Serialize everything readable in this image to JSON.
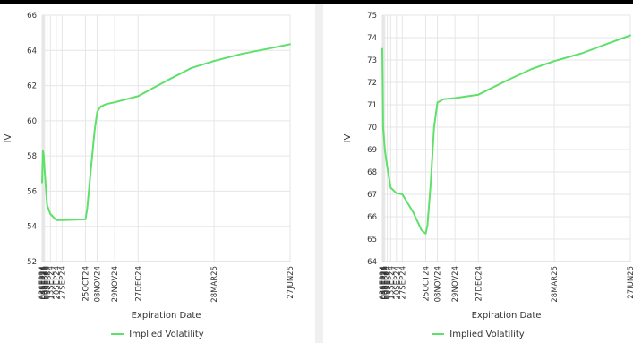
{
  "chart_data": [
    {
      "type": "line",
      "ylabel": "IV",
      "xlabel": "Expiration Date",
      "ylim": [
        52,
        66
      ],
      "yticks": [
        52,
        54,
        56,
        58,
        60,
        62,
        64,
        66
      ],
      "grid": true,
      "legend_position": "bottom-center",
      "xlim": [
        "2024-09-03",
        "2025-06-27"
      ],
      "xticks": [
        {
          "label": "03SEP24",
          "date": "2024-09-03"
        },
        {
          "label": "04SEP24",
          "date": "2024-09-04"
        },
        {
          "label": "05SEP24",
          "date": "2024-09-05"
        },
        {
          "label": "06SEP24",
          "date": "2024-09-06"
        },
        {
          "label": "09SEP24",
          "date": "2024-09-09"
        },
        {
          "label": "13SEP24",
          "date": "2024-09-13"
        },
        {
          "label": "20SEP24",
          "date": "2024-09-20"
        },
        {
          "label": "27SEP24",
          "date": "2024-09-27"
        },
        {
          "label": "25OCT24",
          "date": "2024-10-25"
        },
        {
          "label": "08NOV24",
          "date": "2024-11-08"
        },
        {
          "label": "29NOV24",
          "date": "2024-11-29"
        },
        {
          "label": "27DEC24",
          "date": "2024-12-27"
        },
        {
          "label": "28MAR25",
          "date": "2025-03-28"
        },
        {
          "label": "27JUN25",
          "date": "2025-06-27"
        }
      ],
      "series": [
        {
          "name": "Implied Volatility",
          "color": "#5ee06a",
          "x": [
            "2024-09-03",
            "2024-09-04",
            "2024-09-05",
            "2024-09-06",
            "2024-09-09",
            "2024-09-13",
            "2024-09-20",
            "2024-09-27",
            "2024-10-25",
            "2024-10-27",
            "2024-11-01",
            "2024-11-05",
            "2024-11-08",
            "2024-11-12",
            "2024-11-19",
            "2024-11-29",
            "2024-12-27",
            "2025-01-31",
            "2025-03-01",
            "2025-03-28",
            "2025-04-30",
            "2025-06-01",
            "2025-06-27"
          ],
          "y": [
            56.5,
            58.3,
            58.0,
            57.2,
            55.2,
            54.7,
            54.35,
            54.35,
            54.4,
            55.0,
            57.5,
            59.5,
            60.5,
            60.8,
            60.95,
            61.05,
            61.4,
            62.3,
            63.0,
            63.4,
            63.8,
            64.1,
            64.35
          ]
        }
      ]
    },
    {
      "type": "line",
      "ylabel": "IV",
      "xlabel": "Expiration Date",
      "ylim": [
        64,
        75
      ],
      "yticks": [
        64,
        65,
        66,
        67,
        68,
        69,
        70,
        71,
        72,
        73,
        74,
        75
      ],
      "grid": true,
      "legend_position": "bottom-center",
      "xlim": [
        "2024-09-03",
        "2025-06-27"
      ],
      "xticks": [
        {
          "label": "03SEP24",
          "date": "2024-09-03"
        },
        {
          "label": "04SEP24",
          "date": "2024-09-04"
        },
        {
          "label": "05SEP24",
          "date": "2024-09-05"
        },
        {
          "label": "06SEP24",
          "date": "2024-09-06"
        },
        {
          "label": "09SEP24",
          "date": "2024-09-09"
        },
        {
          "label": "13SEP24",
          "date": "2024-09-13"
        },
        {
          "label": "20SEP24",
          "date": "2024-09-20"
        },
        {
          "label": "27SEP24",
          "date": "2024-09-27"
        },
        {
          "label": "25OCT24",
          "date": "2024-10-25"
        },
        {
          "label": "08NOV24",
          "date": "2024-11-08"
        },
        {
          "label": "29NOV24",
          "date": "2024-11-29"
        },
        {
          "label": "27DEC24",
          "date": "2024-12-27"
        },
        {
          "label": "28MAR25",
          "date": "2025-03-28"
        },
        {
          "label": "27JUN25",
          "date": "2025-06-27"
        }
      ],
      "series": [
        {
          "name": "Implied Volatility",
          "color": "#5ee06a",
          "x": [
            "2024-09-03",
            "2024-09-04",
            "2024-09-05",
            "2024-09-06",
            "2024-09-09",
            "2024-09-13",
            "2024-09-20",
            "2024-09-27",
            "2024-10-10",
            "2024-10-20",
            "2024-10-25",
            "2024-10-27",
            "2024-10-31",
            "2024-11-04",
            "2024-11-08",
            "2024-11-15",
            "2024-11-29",
            "2024-12-27",
            "2025-01-31",
            "2025-03-01",
            "2025-03-28",
            "2025-04-30",
            "2025-06-01",
            "2025-06-27"
          ],
          "y": [
            73.5,
            70.0,
            69.5,
            69.0,
            68.2,
            67.3,
            67.05,
            67.0,
            66.2,
            65.4,
            65.25,
            65.6,
            67.5,
            70.0,
            71.1,
            71.25,
            71.3,
            71.45,
            72.1,
            72.6,
            72.95,
            73.3,
            73.75,
            74.1
          ]
        }
      ]
    }
  ]
}
